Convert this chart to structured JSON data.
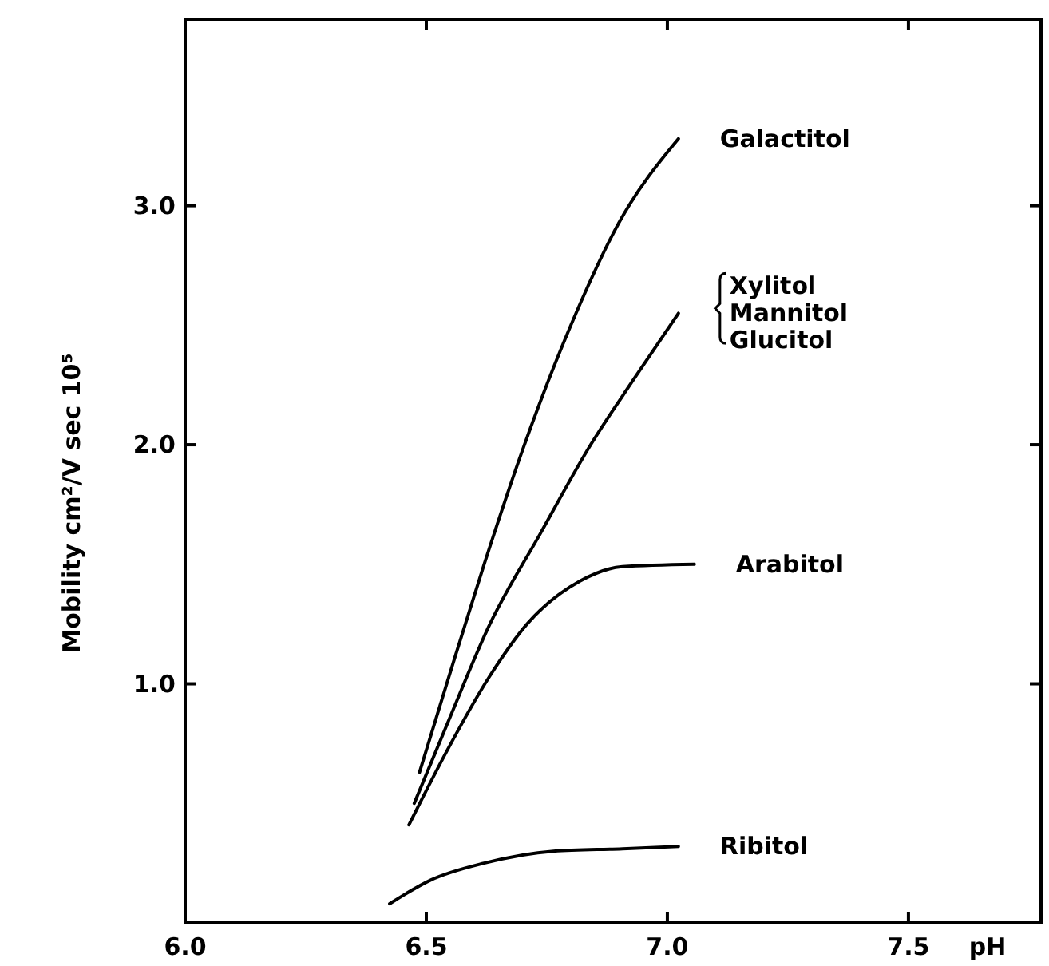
{
  "chart_data": {
    "type": "line",
    "xlabel": "pH",
    "ylabel": "Mobility cm²/V sec 10⁵",
    "xlim": [
      6.0,
      7.775
    ],
    "ylim": [
      0,
      3.78
    ],
    "xticks": [
      {
        "value": 6,
        "label": "6.0"
      },
      {
        "value": 6.5,
        "label": "6.5"
      },
      {
        "value": 7,
        "label": "7.0"
      },
      {
        "value": 7.5,
        "label": "7.5"
      }
    ],
    "yticks": [
      {
        "value": 1,
        "label": "1.0"
      },
      {
        "value": 2,
        "label": "2.0"
      },
      {
        "value": 3,
        "label": "3.0"
      }
    ],
    "grid": false,
    "marker": "none",
    "line_style": "solid",
    "series": [
      {
        "name": "Galactitol",
        "color": "#000000",
        "x": [
          6.486,
          6.55,
          6.62,
          6.7,
          6.8,
          6.9,
          7.023
        ],
        "values": [
          0.63,
          1.05,
          1.5,
          1.98,
          2.5,
          2.93,
          3.28
        ]
      },
      {
        "name": "Xylitol\nMannitol\nGlucitol",
        "color": "#000000",
        "x": [
          6.475,
          6.543,
          6.632,
          6.737,
          6.841,
          6.929,
          7.023
        ],
        "values": [
          0.5,
          0.83,
          1.25,
          1.63,
          2.0,
          2.27,
          2.55
        ]
      },
      {
        "name": "Arabitol",
        "color": "#000000",
        "x": [
          6.464,
          6.543,
          6.631,
          6.709,
          6.819,
          6.907,
          7.056
        ],
        "values": [
          0.41,
          0.72,
          1.03,
          1.25,
          1.43,
          1.49,
          1.5
        ]
      },
      {
        "name": "Ribitol",
        "color": "#000000",
        "x": [
          6.424,
          6.51,
          6.62,
          6.764,
          6.907,
          7.023
        ],
        "values": [
          0.08,
          0.18,
          0.25,
          0.3,
          0.31,
          0.32
        ]
      }
    ]
  }
}
